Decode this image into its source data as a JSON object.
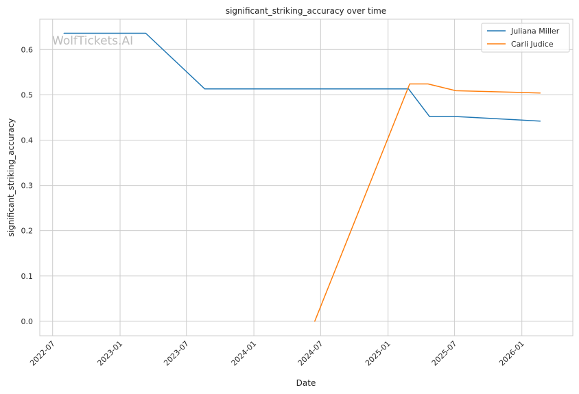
{
  "watermark": "WolfTickets.AI",
  "chart_data": {
    "type": "line",
    "title": "significant_striking_accuracy over time",
    "xlabel": "Date",
    "ylabel": "significant_striking_accuracy",
    "x_axis_type": "date",
    "xlim": [
      "2022-05-27",
      "2026-05-20"
    ],
    "ylim": [
      -0.032,
      0.667
    ],
    "x_ticks": [
      "2022-07",
      "2023-01",
      "2023-07",
      "2024-01",
      "2024-07",
      "2025-01",
      "2025-07",
      "2026-01"
    ],
    "y_ticks": [
      "0.0",
      "0.1",
      "0.2",
      "0.3",
      "0.4",
      "0.5",
      "0.6"
    ],
    "grid": true,
    "legend_position": "top-right",
    "series": [
      {
        "name": "Juliana Miller",
        "color": "#1f77b4",
        "points": [
          {
            "x": "2022-08-01",
            "y": 0.636
          },
          {
            "x": "2023-03-12",
            "y": 0.636
          },
          {
            "x": "2023-08-20",
            "y": 0.513
          },
          {
            "x": "2025-02-26",
            "y": 0.513
          },
          {
            "x": "2025-04-24",
            "y": 0.452
          },
          {
            "x": "2025-07-07",
            "y": 0.452
          },
          {
            "x": "2026-02-20",
            "y": 0.442
          }
        ]
      },
      {
        "name": "Carli Judice",
        "color": "#ff7f0e",
        "points": [
          {
            "x": "2024-06-15",
            "y": 0.0
          },
          {
            "x": "2025-03-01",
            "y": 0.524
          },
          {
            "x": "2025-04-20",
            "y": 0.524
          },
          {
            "x": "2025-07-05",
            "y": 0.509
          },
          {
            "x": "2026-02-20",
            "y": 0.504
          }
        ]
      }
    ]
  }
}
